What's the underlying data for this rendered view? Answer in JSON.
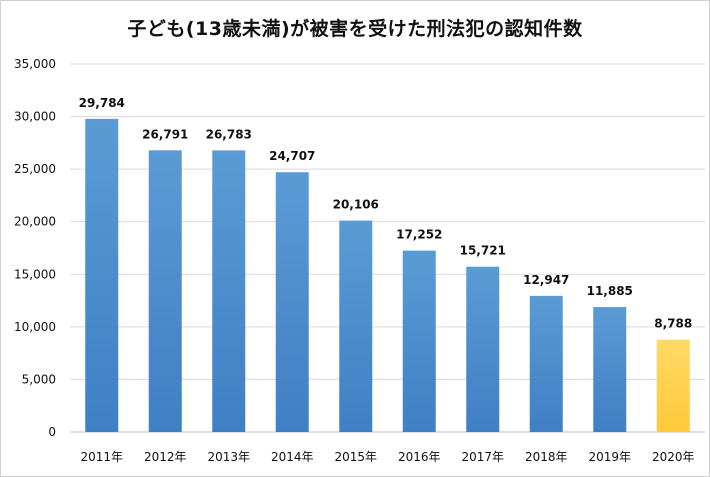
{
  "chart_data": {
    "type": "bar",
    "title": "子ども(13歳未満)が被害を受けた刑法犯の認知件数",
    "categories": [
      "2011年",
      "2012年",
      "2013年",
      "2014年",
      "2015年",
      "2016年",
      "2017年",
      "2018年",
      "2019年",
      "2020年"
    ],
    "values": [
      29784,
      26791,
      26783,
      24707,
      20106,
      17252,
      15721,
      12947,
      11885,
      8788
    ],
    "data_labels": [
      "29,784",
      "26,791",
      "26,783",
      "24,707",
      "20,106",
      "17,252",
      "15,721",
      "12,947",
      "11,885",
      "8,788"
    ],
    "y_ticks": [
      {
        "value": 0,
        "label": "0"
      },
      {
        "value": 5000,
        "label": "5,000"
      },
      {
        "value": 10000,
        "label": "10,000"
      },
      {
        "value": 15000,
        "label": "15,000"
      },
      {
        "value": 20000,
        "label": "20,000"
      },
      {
        "value": 25000,
        "label": "25,000"
      },
      {
        "value": 30000,
        "label": "30,000"
      },
      {
        "value": 35000,
        "label": "35,000"
      }
    ],
    "ylim": [
      0,
      35000
    ],
    "grid": true,
    "legend": "none",
    "colors": {
      "bar": "#5b9bd5",
      "bar_dark": "#3f7fc4",
      "highlight": "#ffd966",
      "highlight_dark": "#ffca3a",
      "grid": "#d9d9d9",
      "axis": "#bfbfbf"
    },
    "highlight_index": 9
  }
}
